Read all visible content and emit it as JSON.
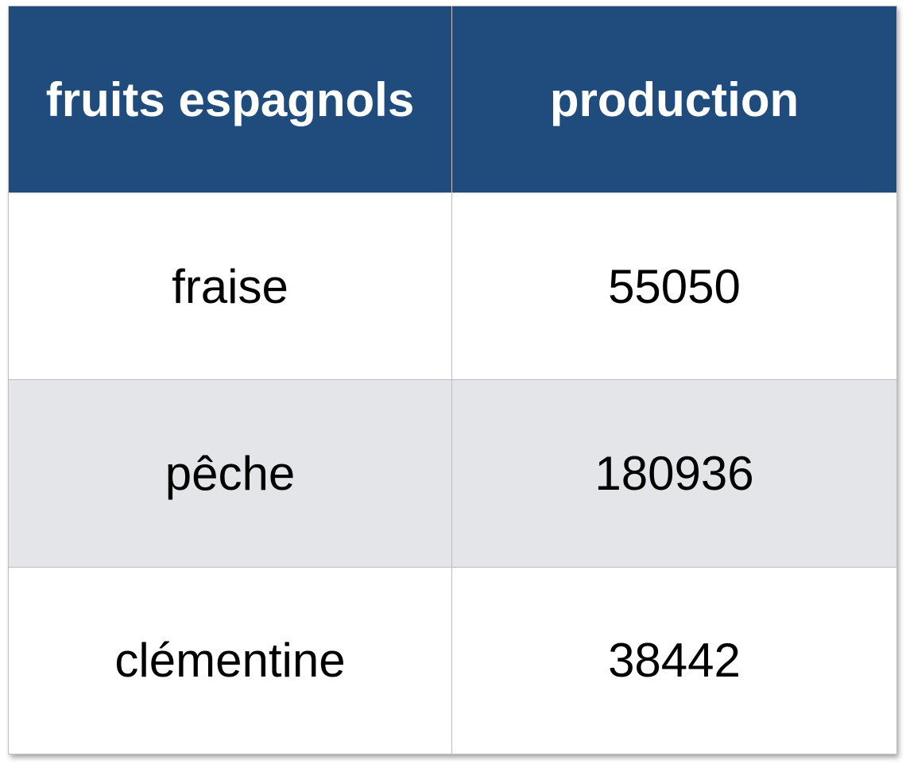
{
  "chart_data": {
    "type": "table",
    "columns": [
      "fruits espagnols",
      "production"
    ],
    "rows": [
      {
        "fruit": "fraise",
        "production": "55050"
      },
      {
        "fruit": "pêche",
        "production": "180936"
      },
      {
        "fruit": "clémentine",
        "production": "38442"
      }
    ]
  },
  "colors": {
    "header_bg": "#1f4c7c",
    "header_text": "#ffffff",
    "alt_row_bg": "#e4e5e9",
    "border": "#bdbdbd"
  }
}
